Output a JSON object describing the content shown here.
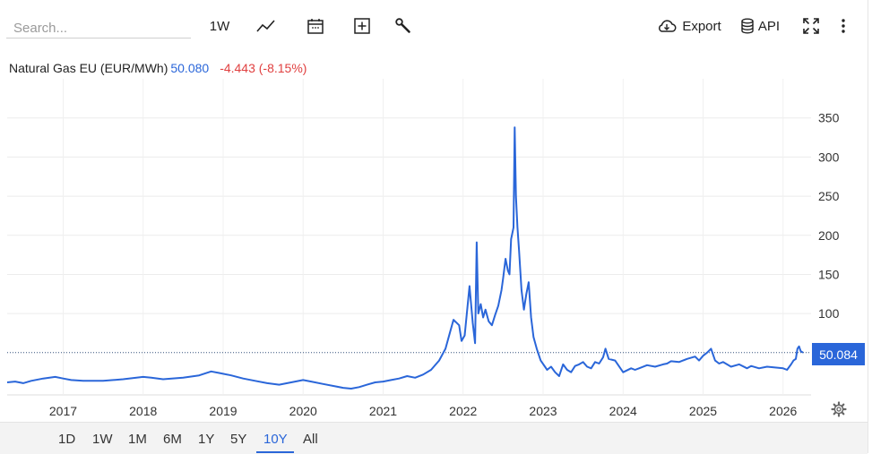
{
  "toolbar": {
    "search_placeholder": "Search...",
    "interval_label": "1W",
    "export_label": "Export",
    "api_label": "API",
    "icons": [
      "line-chart-icon",
      "calendar-icon",
      "add-box-icon",
      "wrench-icon",
      "cloud-download-icon",
      "database-icon",
      "fullscreen-icon",
      "more-vert-icon"
    ]
  },
  "header": {
    "name": "Natural Gas EU (EUR/MWh)",
    "last": "50.080",
    "change": "-4.443 (-8.15%)"
  },
  "price_tag": "50.084",
  "ranges": [
    "1D",
    "1W",
    "1M",
    "6M",
    "1Y",
    "5Y",
    "10Y",
    "All"
  ],
  "active_range": "10Y",
  "colors": {
    "line": "#2a66d9",
    "down": "#e04040",
    "grid": "#ececec",
    "axis_text": "#333333"
  },
  "chart_data": {
    "type": "line",
    "series": [
      {
        "name": "Natural Gas EU (EUR/MWh)",
        "x": [
          2016.3,
          2016.4,
          2016.5,
          2016.6,
          2016.75,
          2016.9,
          2017.0,
          2017.1,
          2017.25,
          2017.5,
          2017.75,
          2018.0,
          2018.1,
          2018.25,
          2018.5,
          2018.7,
          2018.85,
          2018.95,
          2019.1,
          2019.25,
          2019.4,
          2019.55,
          2019.7,
          2019.85,
          2020.0,
          2020.1,
          2020.25,
          2020.4,
          2020.5,
          2020.6,
          2020.7,
          2020.8,
          2020.9,
          2021.0,
          2021.1,
          2021.2,
          2021.3,
          2021.4,
          2021.5,
          2021.6,
          2021.7,
          2021.78,
          2021.82,
          2021.88,
          2021.95,
          2021.98,
          2022.02,
          2022.08,
          2022.12,
          2022.15,
          2022.17,
          2022.19,
          2022.22,
          2022.25,
          2022.28,
          2022.32,
          2022.36,
          2022.4,
          2022.44,
          2022.48,
          2022.5,
          2022.53,
          2022.56,
          2022.58,
          2022.6,
          2022.62,
          2022.63,
          2022.645,
          2022.66,
          2022.68,
          2022.7,
          2022.73,
          2022.76,
          2022.79,
          2022.82,
          2022.85,
          2022.88,
          2022.92,
          2022.97,
          2023.05,
          2023.1,
          2023.15,
          2023.2,
          2023.25,
          2023.3,
          2023.35,
          2023.4,
          2023.45,
          2023.5,
          2023.55,
          2023.6,
          2023.65,
          2023.7,
          2023.75,
          2023.78,
          2023.82,
          2023.9,
          2024.0,
          2024.1,
          2024.15,
          2024.2,
          2024.3,
          2024.4,
          2024.5,
          2024.55,
          2024.6,
          2024.7,
          2024.8,
          2024.9,
          2024.95,
          2025.0,
          2025.05,
          2025.1,
          2025.15,
          2025.2,
          2025.25,
          2025.35,
          2025.45,
          2025.55,
          2025.6,
          2025.7,
          2025.8,
          2025.9,
          2026.0,
          2026.05,
          2026.1,
          2026.13,
          2026.16,
          2026.18,
          2026.2,
          2026.22,
          2026.25
        ],
        "y": [
          12,
          13,
          11,
          14,
          17,
          19,
          17,
          15,
          14,
          14,
          16,
          19,
          18,
          16,
          18,
          21,
          26,
          24,
          21,
          17,
          14,
          11,
          9,
          12,
          15,
          13,
          10,
          7,
          5,
          4,
          6,
          9,
          12,
          13,
          15,
          17,
          20,
          18,
          22,
          28,
          40,
          55,
          70,
          92,
          85,
          65,
          72,
          135,
          88,
          62,
          191,
          100,
          112,
          95,
          105,
          90,
          85,
          98,
          110,
          130,
          145,
          170,
          155,
          150,
          195,
          205,
          210,
          338,
          250,
          210,
          180,
          130,
          105,
          125,
          140,
          95,
          70,
          55,
          40,
          28,
          32,
          25,
          20,
          35,
          28,
          25,
          33,
          35,
          38,
          32,
          30,
          38,
          36,
          44,
          55,
          42,
          40,
          25,
          30,
          28,
          30,
          34,
          32,
          35,
          36,
          39,
          38,
          42,
          45,
          40,
          46,
          50,
          55,
          40,
          36,
          38,
          32,
          35,
          30,
          33,
          30,
          32,
          31,
          30,
          28,
          35,
          40,
          42,
          55,
          58,
          52,
          50
        ]
      }
    ],
    "xlim": [
      2016.3,
      2026.35
    ],
    "ylim": [
      -4,
      400
    ],
    "x_ticks": [
      2017,
      2018,
      2019,
      2020,
      2021,
      2022,
      2023,
      2024,
      2025,
      2026
    ],
    "x_tick_labels": [
      "2017",
      "2018",
      "2019",
      "2020",
      "2021",
      "2022",
      "2023",
      "2024",
      "2025",
      "2026"
    ],
    "y_ticks": [
      100,
      150,
      200,
      250,
      300,
      350
    ],
    "y_tick_labels": [
      "100",
      "150",
      "200",
      "250",
      "300",
      "350"
    ],
    "reference_line": 50.084,
    "grid": true
  }
}
